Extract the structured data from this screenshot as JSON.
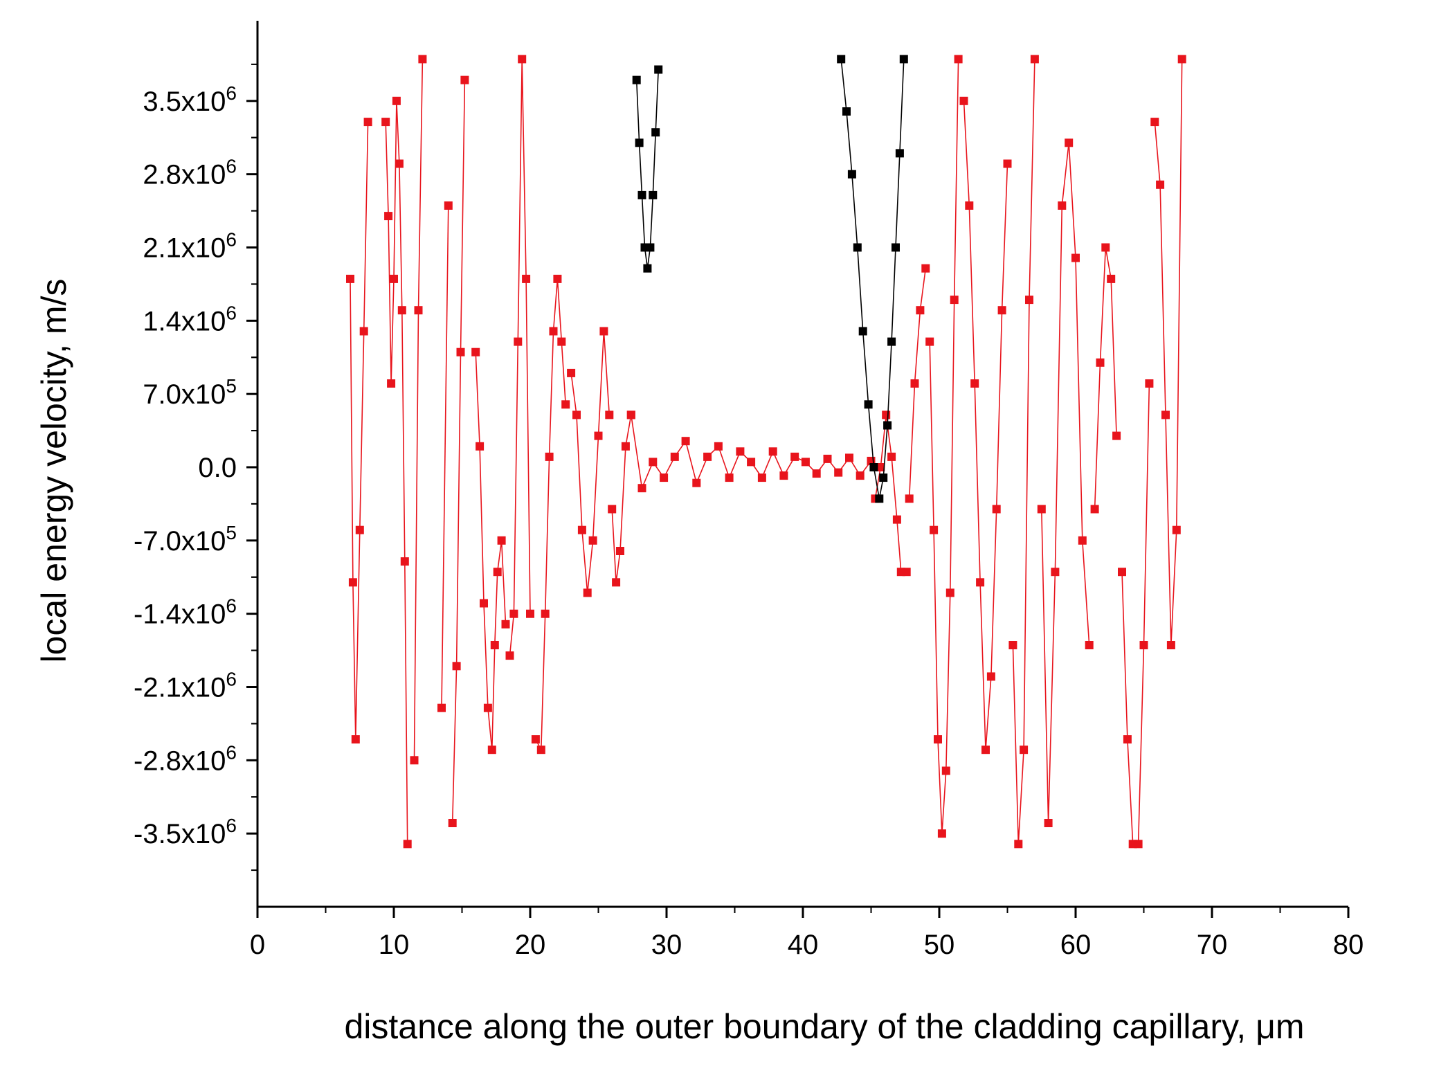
{
  "chart_data": {
    "type": "scatter",
    "title": "",
    "xlabel": "distance along the outer boundary of the cladding capillary, μm",
    "ylabel": "local energy velocity, m/s",
    "xlim": [
      0,
      80
    ],
    "ylim": [
      -4200000,
      4200000
    ],
    "x_ticks": [
      0,
      10,
      20,
      30,
      40,
      50,
      60,
      70,
      80
    ],
    "x_tick_labels": [
      "0",
      "10",
      "20",
      "30",
      "40",
      "50",
      "60",
      "70",
      "80"
    ],
    "y_ticks": [
      3500000,
      2800000,
      2100000,
      1400000,
      700000,
      0,
      -700000,
      -1400000,
      -2100000,
      -2800000,
      -3500000
    ],
    "y_tick_labels": [
      {
        "mantissa": "3.5x10",
        "exp": "6"
      },
      {
        "mantissa": "2.8x10",
        "exp": "6"
      },
      {
        "mantissa": "2.1x10",
        "exp": "6"
      },
      {
        "mantissa": "1.4x10",
        "exp": "6"
      },
      {
        "mantissa": "7.0x10",
        "exp": "5"
      },
      {
        "mantissa": "0.0",
        "exp": ""
      },
      {
        "mantissa": "-7.0x10",
        "exp": "5"
      },
      {
        "mantissa": "-1.4x10",
        "exp": "6"
      },
      {
        "mantissa": "-2.1x10",
        "exp": "6"
      },
      {
        "mantissa": "-2.8x10",
        "exp": "6"
      },
      {
        "mantissa": "-3.5x10",
        "exp": "6"
      }
    ],
    "grid": false,
    "legend": false,
    "series": [
      {
        "color": "#e8141c",
        "marker": "square",
        "segments": [
          {
            "x": [
              6.8,
              7.0,
              7.2,
              7.5,
              7.8,
              8.1
            ],
            "y": [
              1800000,
              -1100000,
              -2600000,
              -600000,
              1300000,
              3300000
            ]
          },
          {
            "x": [
              9.4,
              9.6,
              9.8,
              10.0,
              10.2,
              10.4,
              10.6,
              10.8,
              11.0
            ],
            "y": [
              3300000,
              2400000,
              800000,
              1800000,
              3500000,
              2900000,
              1500000,
              -900000,
              -3600000
            ]
          },
          {
            "x": [
              11.5,
              11.8,
              12.1
            ],
            "y": [
              -2800000,
              1500000,
              3900000
            ]
          },
          {
            "x": [
              13.5,
              14.0
            ],
            "y": [
              -2300000,
              2500000
            ]
          },
          {
            "x": [
              14.3,
              14.6,
              14.9,
              15.2
            ],
            "y": [
              -3400000,
              -1900000,
              1100000,
              3700000
            ]
          },
          {
            "x": [
              16.0,
              16.3,
              16.6,
              16.9,
              17.2,
              17.4,
              17.6,
              17.9,
              18.2
            ],
            "y": [
              1100000,
              200000,
              -1300000,
              -2300000,
              -2700000,
              -1700000,
              -1000000,
              -700000,
              -1500000
            ]
          },
          {
            "x": [
              18.5,
              18.8,
              19.1,
              19.4,
              19.7,
              20.0
            ],
            "y": [
              -1800000,
              -1400000,
              1200000,
              3900000,
              1800000,
              -1400000
            ]
          },
          {
            "x": [
              20.4,
              20.8,
              21.1,
              21.4,
              21.7,
              22.0,
              22.3,
              22.6
            ],
            "y": [
              -2600000,
              -2700000,
              -1400000,
              100000,
              1300000,
              1800000,
              1200000,
              600000
            ]
          },
          {
            "x": [
              23.0,
              23.4,
              23.8,
              24.2,
              24.6,
              25.0,
              25.4,
              25.8
            ],
            "y": [
              900000,
              500000,
              -600000,
              -1200000,
              -700000,
              300000,
              1300000,
              500000
            ]
          },
          {
            "x": [
              26.0,
              26.3,
              26.6,
              27.0,
              27.4
            ],
            "y": [
              -400000,
              -1100000,
              -800000,
              200000,
              500000
            ]
          },
          {
            "x": [
              27.4,
              28.2,
              29.0,
              29.8,
              30.6,
              31.4,
              32.2,
              33.0,
              33.8,
              34.6,
              35.4,
              36.2,
              37.0,
              37.8,
              38.6,
              39.4,
              40.2,
              41.0,
              41.8,
              42.6,
              43.4,
              44.2,
              45.0
            ],
            "y": [
              500000,
              -200000,
              50000,
              -100000,
              100000,
              250000,
              -150000,
              100000,
              200000,
              -100000,
              150000,
              50000,
              -100000,
              150000,
              -80000,
              100000,
              50000,
              -60000,
              80000,
              -50000,
              90000,
              -80000,
              60000
            ]
          },
          {
            "x": [
              45.3,
              45.7,
              46.1,
              46.5,
              46.9,
              47.2,
              47.6
            ],
            "y": [
              -300000,
              0,
              500000,
              100000,
              -500000,
              -1000000,
              -1000000
            ]
          },
          {
            "x": [
              47.8,
              48.2,
              48.6,
              49.0
            ],
            "y": [
              -300000,
              800000,
              1500000,
              1900000
            ]
          },
          {
            "x": [
              49.3,
              49.6,
              49.9,
              50.2,
              50.5,
              50.8,
              51.1,
              51.4
            ],
            "y": [
              1200000,
              -600000,
              -2600000,
              -3500000,
              -2900000,
              -1200000,
              1600000,
              3900000
            ]
          },
          {
            "x": [
              51.8,
              52.2,
              52.6,
              53.0,
              53.4,
              53.8,
              54.2,
              54.6,
              55.0
            ],
            "y": [
              3500000,
              2500000,
              800000,
              -1100000,
              -2700000,
              -2000000,
              -400000,
              1500000,
              2900000
            ]
          },
          {
            "x": [
              55.4,
              55.8,
              56.2,
              56.6,
              57.0
            ],
            "y": [
              -1700000,
              -3600000,
              -2700000,
              1600000,
              3900000
            ]
          },
          {
            "x": [
              57.5,
              58.0,
              58.5,
              59.0,
              59.5,
              60.0,
              60.5,
              61.0
            ],
            "y": [
              -400000,
              -3400000,
              -1000000,
              2500000,
              3100000,
              2000000,
              -700000,
              -1700000
            ]
          },
          {
            "x": [
              61.4,
              61.8,
              62.2,
              62.6,
              63.0
            ],
            "y": [
              -400000,
              1000000,
              2100000,
              1800000,
              300000
            ]
          },
          {
            "x": [
              63.4,
              63.8,
              64.2,
              64.6,
              65.0,
              65.4
            ],
            "y": [
              -1000000,
              -2600000,
              -3600000,
              -3600000,
              -1700000,
              800000
            ]
          },
          {
            "x": [
              65.8,
              66.2,
              66.6,
              67.0,
              67.4,
              67.8
            ],
            "y": [
              3300000,
              2700000,
              500000,
              -1700000,
              -600000,
              3900000
            ]
          }
        ]
      },
      {
        "color": "#000000",
        "marker": "square",
        "segments": [
          {
            "x": [
              27.8,
              28.0,
              28.2,
              28.4,
              28.6,
              28.8,
              29.0,
              29.2,
              29.4
            ],
            "y": [
              3700000,
              3100000,
              2600000,
              2100000,
              1900000,
              2100000,
              2600000,
              3200000,
              3800000
            ]
          },
          {
            "x": [
              42.8,
              43.2,
              43.6,
              44.0,
              44.4,
              44.8,
              45.2,
              45.6,
              45.9,
              46.2,
              46.5,
              46.8,
              47.1,
              47.4
            ],
            "y": [
              3900000,
              3400000,
              2800000,
              2100000,
              1300000,
              600000,
              0,
              -300000,
              -100000,
              400000,
              1200000,
              2100000,
              3000000,
              3900000
            ]
          }
        ]
      }
    ]
  }
}
